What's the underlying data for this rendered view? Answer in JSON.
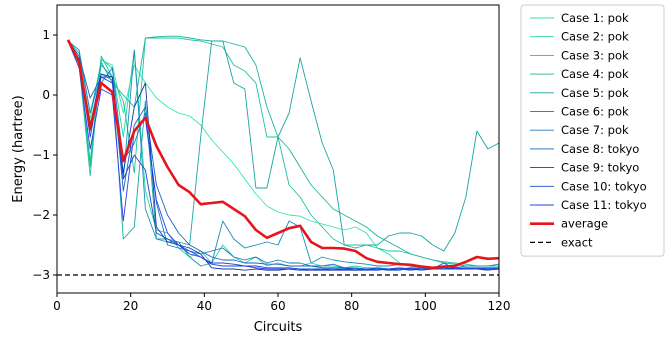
{
  "chart_data": {
    "type": "line",
    "title": "",
    "xlabel": "Circuits",
    "ylabel": "Energy (hartree)",
    "xlim": [
      0,
      120
    ],
    "ylim": [
      -3.3,
      1.5
    ],
    "xticks": [
      0,
      20,
      40,
      60,
      80,
      100,
      120
    ],
    "yticks": [
      1,
      0,
      -1,
      -2,
      -3
    ],
    "ytick_labels": [
      "1",
      "0",
      "−1",
      "−2",
      "−3"
    ],
    "grid": false,
    "legend_position": "outside-right",
    "exact_value": -3.0,
    "series": [
      {
        "name": "Case 1: pok",
        "color": "#2ee6b0",
        "width": 0.9,
        "x": [
          3,
          6,
          9,
          12,
          15,
          18,
          21,
          24,
          27,
          30,
          33,
          36,
          39,
          42,
          45,
          48,
          51,
          54,
          57,
          60,
          63,
          66,
          69,
          72,
          75,
          78,
          81,
          84,
          87,
          90,
          93,
          96,
          99,
          102,
          105,
          108,
          111,
          114,
          117,
          120
        ],
        "y": [
          0.92,
          0.55,
          -0.4,
          0.58,
          0.5,
          -0.3,
          0.5,
          0.2,
          -0.05,
          -0.2,
          -0.3,
          -0.35,
          -0.5,
          -0.75,
          -0.95,
          -1.15,
          -1.4,
          -1.65,
          -1.85,
          -1.95,
          -2.0,
          -2.02,
          -2.1,
          -2.15,
          -2.2,
          -2.25,
          -2.2,
          -2.3,
          -2.55,
          -2.65,
          -2.8,
          -2.85,
          -2.88,
          -2.9,
          -2.9,
          -2.9,
          -2.9,
          -2.88,
          -2.88,
          -2.88
        ]
      },
      {
        "name": "Case 2: pok",
        "color": "#22d4a6",
        "width": 0.9,
        "x": [
          3,
          6,
          9,
          12,
          15,
          18,
          21,
          24,
          27,
          30,
          33,
          36,
          39,
          42,
          45,
          48,
          51,
          54,
          57,
          60,
          63,
          66,
          69,
          72,
          75,
          78,
          81,
          84,
          87,
          90,
          93,
          96,
          99,
          102,
          105,
          108,
          111,
          114,
          117,
          120
        ],
        "y": [
          0.9,
          0.55,
          -1.1,
          0.6,
          0.45,
          -0.7,
          0.75,
          -1.6,
          -2.25,
          -2.3,
          -2.55,
          -2.7,
          -2.6,
          -2.8,
          -2.5,
          -2.7,
          -2.8,
          -2.7,
          -2.85,
          -2.8,
          -2.85,
          -2.85,
          -2.8,
          -2.85,
          -2.85,
          -2.88,
          -2.85,
          -2.88,
          -2.88,
          -2.9,
          -2.88,
          -2.9,
          -2.88,
          -2.9,
          -2.88,
          -2.88,
          -2.88,
          -2.9,
          -2.88,
          -2.9
        ]
      },
      {
        "name": "Case 3: pok",
        "color": "#1cc39e",
        "width": 0.9,
        "x": [
          3,
          6,
          9,
          12,
          15,
          18,
          21,
          24,
          27,
          30,
          33,
          36,
          39,
          42,
          45,
          48,
          51,
          54,
          57,
          60,
          63,
          66,
          69,
          72,
          75,
          78,
          81,
          84,
          87,
          90,
          93,
          96,
          99,
          102,
          105,
          108,
          111,
          114,
          117,
          120
        ],
        "y": [
          0.9,
          0.5,
          -1.35,
          0.65,
          0.3,
          -0.1,
          -1.3,
          0.95,
          0.95,
          0.95,
          0.95,
          0.92,
          0.9,
          0.85,
          0.8,
          0.5,
          0.4,
          0.2,
          -0.7,
          -0.7,
          -1.5,
          -1.7,
          -2.0,
          -2.2,
          -2.4,
          -2.5,
          -2.5,
          -2.5,
          -2.55,
          -2.6,
          -2.6,
          -2.65,
          -2.7,
          -2.75,
          -2.78,
          -2.8,
          -2.82,
          -2.85,
          -2.85,
          -2.85
        ]
      },
      {
        "name": "Case 4: pok",
        "color": "#18b69c",
        "width": 0.9,
        "x": [
          3,
          6,
          9,
          12,
          15,
          18,
          21,
          24,
          27,
          30,
          33,
          36,
          39,
          42,
          45,
          48,
          51,
          54,
          57,
          60,
          63,
          66,
          69,
          72,
          75,
          78,
          81,
          84,
          87,
          90,
          93,
          96,
          99,
          102,
          105,
          108,
          111,
          114,
          117,
          120
        ],
        "y": [
          0.9,
          0.6,
          -1.2,
          0.55,
          0.2,
          0.0,
          -0.2,
          0.95,
          0.97,
          0.98,
          0.98,
          0.95,
          0.92,
          0.9,
          0.9,
          0.85,
          0.8,
          0.5,
          -0.2,
          -0.7,
          -0.9,
          -1.2,
          -1.5,
          -1.7,
          -1.9,
          -2.0,
          -2.1,
          -2.2,
          -2.35,
          -2.45,
          -2.55,
          -2.65,
          -2.7,
          -2.75,
          -2.8,
          -2.82,
          -2.85,
          -2.85,
          -2.85,
          -2.85
        ]
      },
      {
        "name": "Case 5: pok",
        "color": "#14a6a2",
        "width": 0.9,
        "x": [
          3,
          6,
          9,
          12,
          15,
          18,
          21,
          24,
          27,
          30,
          33,
          36,
          39,
          42,
          45,
          48,
          51,
          54,
          57,
          60,
          63,
          66,
          69,
          72,
          75,
          78,
          81,
          84,
          87,
          90,
          93,
          96,
          99,
          102,
          105,
          108,
          111,
          114,
          117,
          120
        ],
        "y": [
          0.9,
          0.7,
          -0.3,
          0.5,
          0.3,
          -2.4,
          -2.2,
          -0.1,
          -2.4,
          -2.4,
          -2.45,
          -2.5,
          -0.7,
          0.9,
          0.9,
          0.2,
          0.1,
          -1.55,
          -1.55,
          -0.7,
          -0.3,
          0.62,
          -0.1,
          -0.8,
          -1.25,
          -2.5,
          -2.55,
          -2.5,
          -2.5,
          -2.35,
          -2.3,
          -2.3,
          -2.35,
          -2.5,
          -2.6,
          -2.3,
          -1.7,
          -0.6,
          -0.9,
          -0.8
        ]
      },
      {
        "name": "Case 6: pok",
        "color": "#1a8eb8",
        "width": 0.9,
        "x": [
          3,
          6,
          9,
          12,
          15,
          18,
          21,
          24,
          27,
          30,
          33,
          36,
          39,
          42,
          45,
          48,
          51,
          54,
          57,
          60,
          63,
          66,
          69,
          72,
          75,
          78,
          81,
          84,
          87,
          90,
          93,
          96,
          99,
          102,
          105,
          108,
          111,
          114,
          117,
          120
        ],
        "y": [
          0.9,
          0.75,
          -0.3,
          0.35,
          0.25,
          -1.4,
          0.75,
          -1.9,
          -2.4,
          -2.45,
          -2.45,
          -2.7,
          -2.85,
          -2.8,
          -2.1,
          -2.4,
          -2.55,
          -2.5,
          -2.45,
          -2.5,
          -2.1,
          -2.2,
          -2.8,
          -2.7,
          -2.75,
          -2.78,
          -2.8,
          -2.82,
          -2.85,
          -2.85,
          -2.82,
          -2.85,
          -2.88,
          -2.88,
          -2.85,
          -2.88,
          -2.85,
          -2.85,
          -2.85,
          -2.82
        ]
      },
      {
        "name": "Case 7: pok",
        "color": "#1b77c2",
        "width": 0.9,
        "x": [
          3,
          6,
          9,
          12,
          15,
          18,
          21,
          24,
          27,
          30,
          33,
          36,
          39,
          42,
          45,
          48,
          51,
          54,
          57,
          60,
          63,
          66,
          69,
          72,
          75,
          78,
          81,
          84,
          87,
          90,
          93,
          96,
          99,
          102,
          105,
          108,
          111,
          114,
          117,
          120
        ],
        "y": [
          0.9,
          0.55,
          -0.6,
          0.2,
          0.45,
          -1.1,
          -0.8,
          -0.3,
          -1.8,
          -2.5,
          -2.55,
          -2.6,
          -2.65,
          -2.6,
          -2.55,
          -2.7,
          -2.75,
          -2.7,
          -2.8,
          -2.75,
          -2.8,
          -2.8,
          -2.85,
          -2.85,
          -2.82,
          -2.88,
          -2.88,
          -2.9,
          -2.88,
          -2.9,
          -2.9,
          -2.88,
          -2.9,
          -2.9,
          -2.88,
          -2.9,
          -2.88,
          -2.88,
          -2.9,
          -2.88
        ]
      },
      {
        "name": "Case 8: tokyo",
        "color": "#1663c8",
        "width": 0.9,
        "x": [
          3,
          6,
          9,
          12,
          15,
          18,
          21,
          24,
          27,
          30,
          33,
          36,
          39,
          42,
          45,
          48,
          51,
          54,
          57,
          60,
          63,
          66,
          69,
          72,
          75,
          78,
          81,
          84,
          87,
          90,
          93,
          96,
          99,
          102,
          105,
          108,
          111,
          114,
          117,
          120
        ],
        "y": [
          0.9,
          0.65,
          -0.05,
          0.3,
          0.3,
          -1.6,
          -0.5,
          -0.2,
          -1.5,
          -2.0,
          -2.3,
          -2.5,
          -2.6,
          -2.7,
          -2.75,
          -2.75,
          -2.8,
          -2.8,
          -2.82,
          -2.82,
          -2.85,
          -2.85,
          -2.85,
          -2.88,
          -2.88,
          -2.88,
          -2.9,
          -2.9,
          -2.9,
          -2.9,
          -2.88,
          -2.9,
          -2.9,
          -2.9,
          -2.9,
          -2.88,
          -2.9,
          -2.88,
          -2.88,
          -2.88
        ]
      },
      {
        "name": "Case 9: tokyo",
        "color": "#1239a8",
        "width": 0.9,
        "x": [
          3,
          6,
          9,
          12,
          15,
          18,
          21,
          24,
          27,
          30,
          33,
          36,
          39,
          42,
          45,
          48,
          51,
          54,
          57,
          60,
          63,
          66,
          69,
          72,
          75,
          78,
          81,
          84,
          87,
          90,
          93,
          96,
          99,
          102,
          105,
          108,
          111,
          114,
          117,
          120
        ],
        "y": [
          0.9,
          0.6,
          -0.5,
          0.35,
          0.3,
          -1.3,
          -0.2,
          0.2,
          -2.2,
          -2.45,
          -2.5,
          -2.55,
          -2.65,
          -2.88,
          -2.9,
          -2.9,
          -2.92,
          -2.9,
          -2.92,
          -2.92,
          -2.9,
          -2.92,
          -2.92,
          -2.92,
          -2.92,
          -2.92,
          -2.92,
          -2.92,
          -2.9,
          -2.92,
          -2.9,
          -2.92,
          -2.9,
          -2.9,
          -2.9,
          -2.9,
          -2.9,
          -2.9,
          -2.92,
          -2.9
        ]
      },
      {
        "name": "Case 10: tokyo",
        "color": "#1a48cc",
        "width": 0.9,
        "x": [
          3,
          6,
          9,
          12,
          15,
          18,
          21,
          24,
          27,
          30,
          33,
          36,
          39,
          42,
          45,
          48,
          51,
          54,
          57,
          60,
          63,
          66,
          69,
          72,
          75,
          78,
          81,
          84,
          87,
          90,
          93,
          96,
          99,
          102,
          105,
          108,
          111,
          114,
          117,
          120
        ],
        "y": [
          0.9,
          0.55,
          -0.7,
          0.3,
          0.2,
          -1.4,
          -1.0,
          -1.25,
          -2.3,
          -2.4,
          -2.5,
          -2.6,
          -2.7,
          -2.8,
          -2.8,
          -2.82,
          -2.85,
          -2.85,
          -2.88,
          -2.88,
          -2.88,
          -2.9,
          -2.9,
          -2.9,
          -2.9,
          -2.9,
          -2.9,
          -2.92,
          -2.9,
          -2.92,
          -2.92,
          -2.88,
          -2.9,
          -2.9,
          -2.9,
          -2.88,
          -2.9,
          -2.9,
          -2.9,
          -2.88
        ]
      },
      {
        "name": "Case 11: tokyo",
        "color": "#2a3ee6",
        "width": 0.9,
        "x": [
          3,
          6,
          9,
          12,
          15,
          18,
          21,
          24,
          27,
          30,
          33,
          36,
          39,
          42,
          45,
          48,
          51,
          54,
          57,
          60,
          63,
          66,
          69,
          72,
          75,
          78,
          81,
          84,
          87,
          90,
          93,
          96,
          99,
          102,
          105,
          108,
          111,
          114,
          117,
          120
        ],
        "y": [
          0.9,
          0.45,
          -0.9,
          0.1,
          0.0,
          -2.1,
          -0.6,
          -0.4,
          -1.75,
          -2.3,
          -2.5,
          -2.65,
          -2.7,
          -2.82,
          -2.85,
          -2.85,
          -2.85,
          -2.88,
          -2.9,
          -2.9,
          -2.9,
          -2.92,
          -2.9,
          -2.92,
          -2.9,
          -2.92,
          -2.9,
          -2.92,
          -2.92,
          -2.9,
          -2.9,
          -2.9,
          -2.92,
          -2.9,
          -2.8,
          -2.9,
          -2.88,
          -2.9,
          -2.9,
          -2.88
        ]
      },
      {
        "name": "average",
        "color": "#e8141c",
        "width": 2.6,
        "x": [
          3,
          6,
          9,
          12,
          15,
          18,
          21,
          24,
          27,
          30,
          33,
          36,
          39,
          42,
          45,
          48,
          51,
          54,
          57,
          60,
          63,
          66,
          69,
          72,
          75,
          78,
          81,
          84,
          87,
          90,
          93,
          96,
          99,
          102,
          105,
          108,
          111,
          114,
          117,
          120
        ],
        "y": [
          0.92,
          0.55,
          -0.55,
          0.2,
          0.05,
          -1.1,
          -0.6,
          -0.38,
          -0.85,
          -1.2,
          -1.5,
          -1.62,
          -1.82,
          -1.8,
          -1.78,
          -1.9,
          -2.02,
          -2.25,
          -2.38,
          -2.3,
          -2.22,
          -2.18,
          -2.45,
          -2.55,
          -2.55,
          -2.56,
          -2.6,
          -2.72,
          -2.78,
          -2.8,
          -2.82,
          -2.83,
          -2.86,
          -2.88,
          -2.86,
          -2.85,
          -2.78,
          -2.7,
          -2.73,
          -2.72
        ]
      }
    ],
    "legend_extra": {
      "name": "exact",
      "color": "#000000",
      "style": "dashed"
    }
  }
}
